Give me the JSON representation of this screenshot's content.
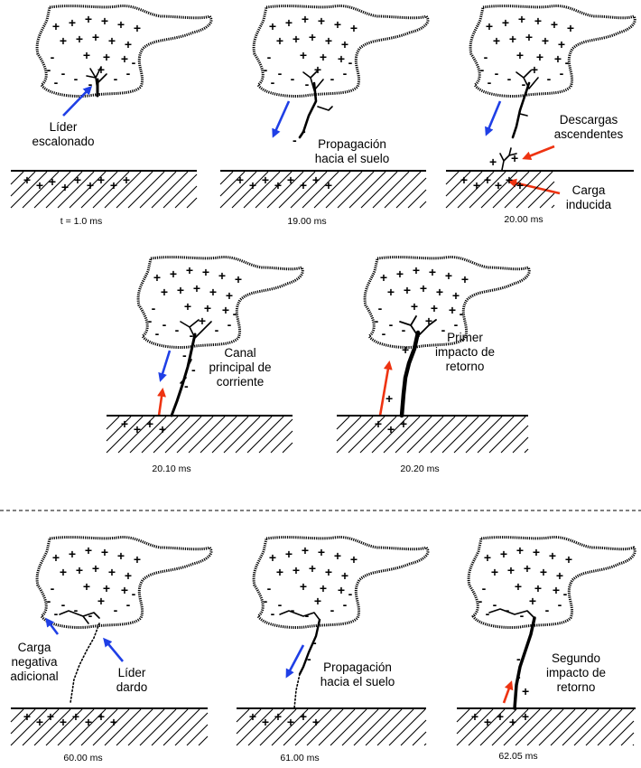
{
  "colors": {
    "blue_arrow": "#1f3fe6",
    "red_arrow": "#ee3311",
    "ink": "#000000"
  },
  "panels": [
    {
      "time": "t = 1.0 ms",
      "labels": [
        "Líder",
        "escalonado"
      ]
    },
    {
      "time": "19.00 ms",
      "labels": [
        "Propagación",
        "hacia el suelo"
      ]
    },
    {
      "time": "20.00 ms",
      "labels": [
        "Descargas",
        "ascendentes",
        "Carga",
        "inducida"
      ]
    },
    {
      "time": "20.10 ms",
      "labels": [
        "Canal",
        "principal de",
        "corriente"
      ]
    },
    {
      "time": "20.20 ms",
      "labels": [
        "Primer",
        "impacto de",
        "retorno"
      ]
    },
    {
      "time": "60.00 ms",
      "labels": [
        "Carga",
        "negativa",
        "adicional",
        "Líder",
        "dardo"
      ]
    },
    {
      "time": "61.00 ms",
      "labels": [
        "Propagación",
        "hacia el suelo"
      ]
    },
    {
      "time": "62.05 ms",
      "labels": [
        "Segundo",
        "impacto de",
        "retorno"
      ]
    }
  ],
  "symbols": {
    "plus": "+",
    "minus": "-"
  }
}
